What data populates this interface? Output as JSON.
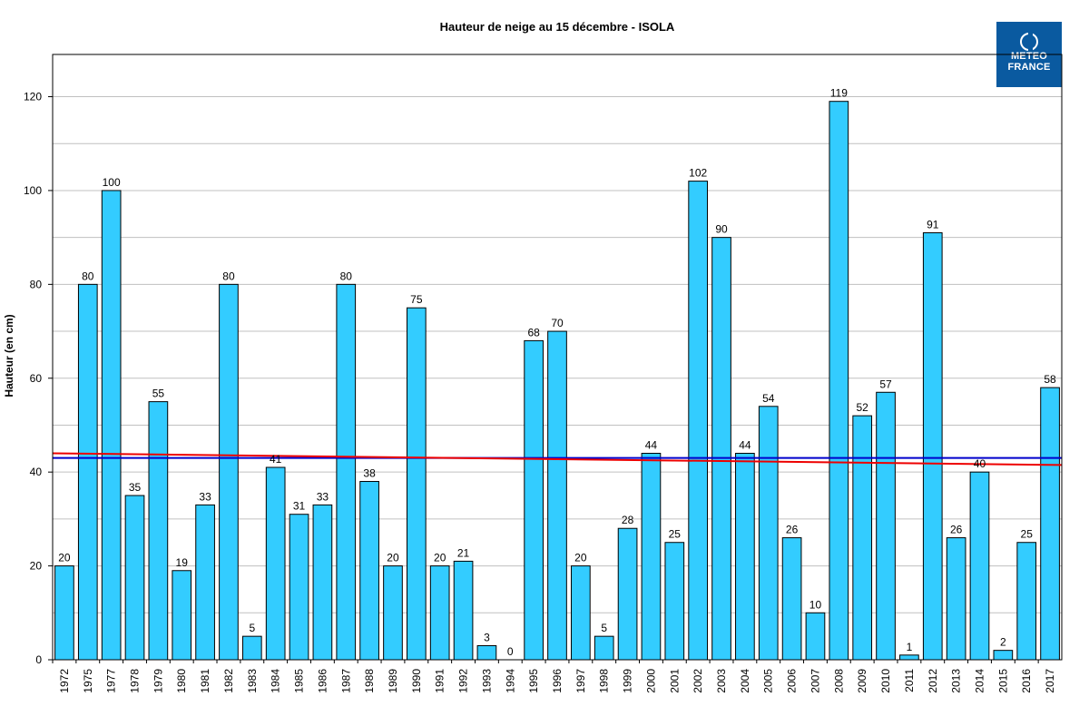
{
  "chart_data": {
    "type": "bar",
    "title": "Hauteur de neige au 15 décembre - ISOLA",
    "ylabel": "Hauteur (en cm)",
    "xlabel": "",
    "ylim": [
      0,
      129
    ],
    "yticks": [
      0,
      20,
      40,
      60,
      80,
      100,
      120
    ],
    "grid": true,
    "bar_color": "#33ccff",
    "categories": [
      "1972",
      "1975",
      "1977",
      "1978",
      "1979",
      "1980",
      "1981",
      "1982",
      "1983",
      "1984",
      "1985",
      "1986",
      "1987",
      "1988",
      "1989",
      "1990",
      "1991",
      "1992",
      "1993",
      "1994",
      "1995",
      "1996",
      "1997",
      "1998",
      "1999",
      "2000",
      "2001",
      "2002",
      "2003",
      "2004",
      "2005",
      "2006",
      "2007",
      "2008",
      "2009",
      "2010",
      "2011",
      "2012",
      "2013",
      "2014",
      "2015",
      "2016",
      "2017"
    ],
    "values": [
      20,
      80,
      100,
      35,
      55,
      19,
      33,
      80,
      5,
      41,
      31,
      33,
      80,
      38,
      20,
      75,
      20,
      21,
      3,
      0,
      68,
      70,
      20,
      5,
      28,
      44,
      25,
      102,
      90,
      44,
      54,
      26,
      10,
      119,
      52,
      57,
      1,
      91,
      26,
      40,
      2,
      25,
      58
    ],
    "lines": [
      {
        "color": "#0000cc",
        "start": 43,
        "end": 43
      },
      {
        "color": "#ee0000",
        "start": 44,
        "end": 41.5
      }
    ]
  },
  "logo": {
    "line1": "METEO",
    "line2": "FRANCE",
    "icon": "meteo-france-logo-icon"
  }
}
